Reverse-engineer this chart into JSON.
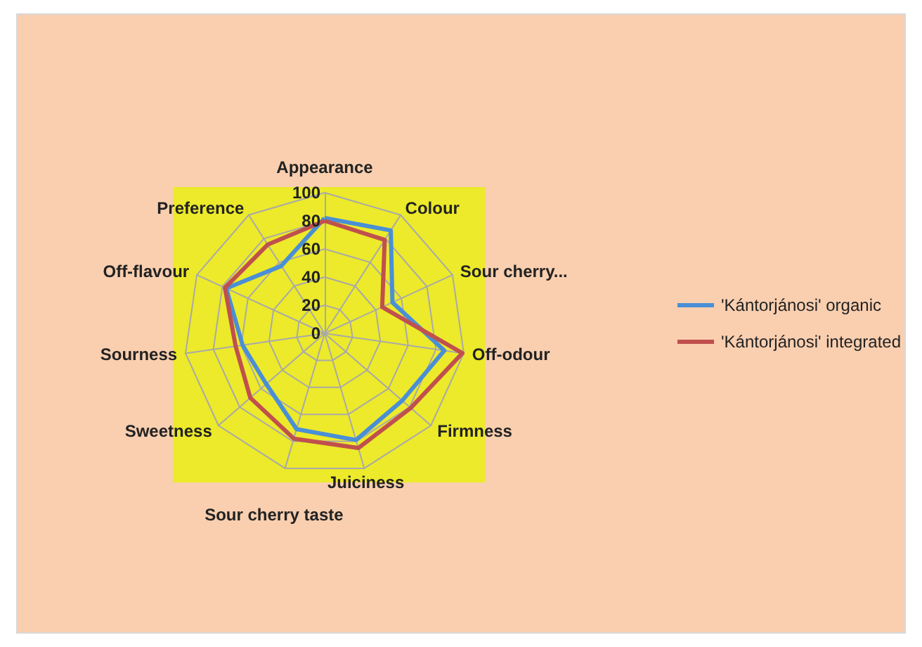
{
  "chart_data": {
    "type": "radar",
    "categories": [
      "Appearance",
      "Colour",
      "Sour cherry...",
      "Off-odour",
      "Firmness",
      "Juiciness",
      "Sour cherry taste",
      "Sweetness",
      "Sourness",
      "Off-flavour",
      "Preference"
    ],
    "series": [
      {
        "name": "'Kántorjánosi' organic",
        "color": "#4a8fd6",
        "values": [
          82,
          87,
          53,
          86,
          73,
          79,
          71,
          55,
          59,
          77,
          57
        ]
      },
      {
        "name": "'Kántorjánosi' integrated",
        "color": "#c0504d",
        "values": [
          80,
          79,
          45,
          99,
          81,
          85,
          78,
          70,
          64,
          78,
          75
        ]
      }
    ],
    "ylim": [
      0,
      100
    ],
    "yticks": [
      0,
      20,
      40,
      60,
      80,
      100
    ],
    "grid": true,
    "legend": "right",
    "marker": "none",
    "line_style": "solid"
  }
}
